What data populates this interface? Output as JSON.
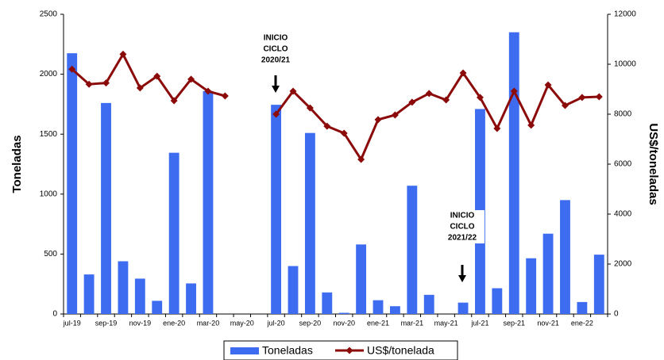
{
  "chart_data": {
    "type": "combo",
    "y_label": "Toneladas",
    "y2_label": "US$/toneladas",
    "categories": [
      "jul-19",
      null,
      "sep-19",
      null,
      "nov-19",
      null,
      "ene-20",
      null,
      "mar-20",
      null,
      "may-20",
      null,
      "jul-20",
      null,
      "sep-20",
      null,
      "nov-20",
      null,
      "ene-21",
      null,
      "mar-21",
      null,
      "may-21",
      null,
      "jul-21",
      null,
      "sep-21",
      null,
      "nov-21",
      null,
      "ene-22",
      null
    ],
    "series": [
      {
        "name": "Toneladas",
        "type": "bar",
        "color": "#3d6cf0",
        "values": [
          2175,
          330,
          1760,
          440,
          295,
          110,
          1345,
          255,
          1860,
          0,
          0,
          0,
          1745,
          400,
          1510,
          180,
          10,
          580,
          115,
          65,
          1070,
          160,
          0,
          95,
          1710,
          215,
          2350,
          465,
          670,
          950,
          100,
          495
        ]
      },
      {
        "name": "US$/tonelada",
        "type": "line",
        "axis": "y2",
        "color": "#8b0a0a",
        "values": [
          9800,
          9200,
          9250,
          10400,
          9050,
          9520,
          8540,
          9400,
          8920,
          8730,
          null,
          null,
          8000,
          8920,
          8250,
          7520,
          7240,
          6190,
          7780,
          7970,
          8480,
          8830,
          8570,
          9650,
          8670,
          7430,
          8920,
          7560,
          9170,
          8350,
          8670,
          8700
        ]
      }
    ],
    "ylim": [
      0,
      2500
    ],
    "yticks": [
      0,
      500,
      1000,
      1500,
      2000,
      2500
    ],
    "y2lim": [
      0,
      12000
    ],
    "y2ticks": [
      0,
      2000,
      4000,
      6000,
      8000,
      10000,
      12000
    ],
    "annotations": [
      [
        "INICIO",
        "CICLO",
        "2020/21"
      ],
      [
        "INICIO",
        "CICLO",
        "2021/22"
      ]
    ],
    "legend": "bottom"
  }
}
